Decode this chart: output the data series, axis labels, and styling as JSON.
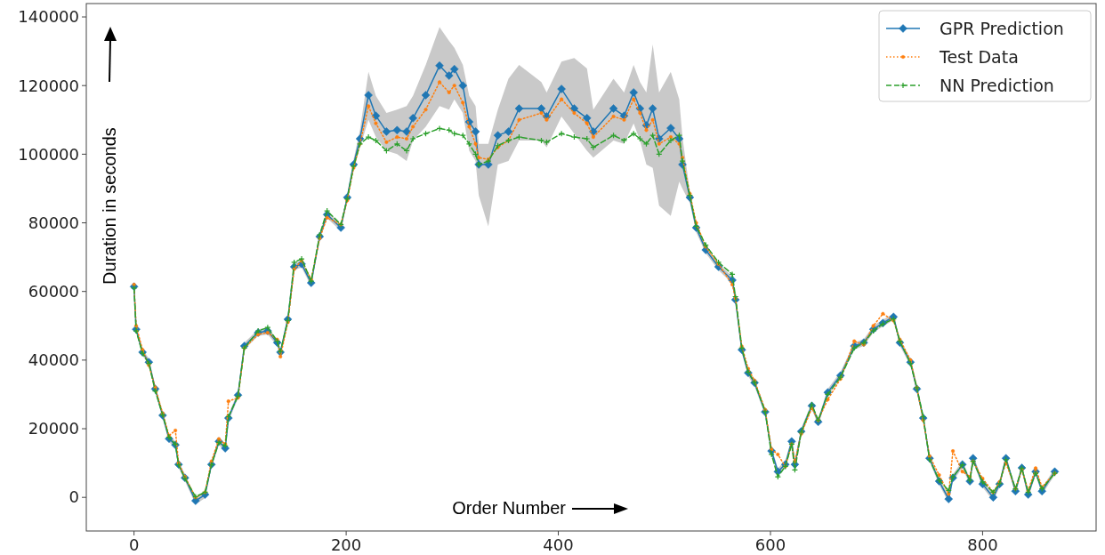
{
  "chart_data": {
    "type": "line",
    "xlabel": "Order Number",
    "ylabel": "Duration in seconds",
    "xlim": [
      -45,
      907
    ],
    "ylim": [
      -9800,
      143900
    ],
    "xticks": [
      0,
      200,
      400,
      600,
      800
    ],
    "yticks": [
      0,
      20000,
      40000,
      60000,
      80000,
      100000,
      120000,
      140000
    ],
    "grid": false,
    "legend": "top right",
    "x": [
      0,
      2,
      8,
      14,
      20,
      27,
      33,
      39,
      42,
      48,
      58,
      67,
      73,
      80,
      86,
      89,
      98,
      104,
      117,
      126,
      135,
      138,
      145,
      151,
      158,
      167,
      175,
      182,
      195,
      201,
      207,
      213,
      221,
      228,
      238,
      248,
      257,
      263,
      275,
      288,
      297,
      302,
      310,
      316,
      322,
      325,
      334,
      343,
      353,
      363,
      384,
      389,
      403,
      415,
      427,
      433,
      452,
      462,
      471,
      477,
      483,
      489,
      495,
      506,
      514,
      517,
      524,
      530,
      539,
      551,
      564,
      567,
      573,
      579,
      585,
      595,
      601,
      607,
      614,
      620,
      623,
      629,
      639,
      645,
      654,
      666,
      679,
      688,
      697,
      706,
      716,
      722,
      732,
      738,
      744,
      750,
      759,
      768,
      772,
      781,
      788,
      791,
      800,
      810,
      816,
      822,
      831,
      837,
      843,
      850,
      856,
      868
    ],
    "series": [
      {
        "name": "GPR Prediction",
        "color": "#1f77b4",
        "marker": "diamond",
        "line_style": "solid",
        "values": [
          61400,
          49000,
          42300,
          39400,
          31600,
          23900,
          17100,
          15300,
          9600,
          5700,
          -1000,
          800,
          9600,
          16300,
          14300,
          23100,
          29800,
          44100,
          48000,
          48500,
          45100,
          42300,
          51900,
          67200,
          68000,
          62500,
          76000,
          82400,
          78600,
          87400,
          97000,
          104500,
          117200,
          111200,
          106600,
          107000,
          106600,
          110500,
          117200,
          125800,
          122900,
          124800,
          120000,
          109400,
          106600,
          97000,
          97000,
          105500,
          106600,
          113300,
          113300,
          111000,
          119000,
          113300,
          110500,
          106600,
          113300,
          111200,
          118000,
          113300,
          108400,
          113300,
          104500,
          107600,
          104500,
          97000,
          87400,
          78600,
          72100,
          67200,
          63300,
          57600,
          43000,
          36300,
          33400,
          24900,
          13500,
          7500,
          9600,
          16300,
          9600,
          19200,
          26700,
          22000,
          30600,
          35500,
          44100,
          45100,
          49000,
          50800,
          52600,
          45100,
          39400,
          31600,
          23100,
          11400,
          4700,
          -500,
          5700,
          9600,
          4700,
          11400,
          3900,
          0,
          3900,
          11400,
          1800,
          8600,
          800,
          7500,
          1800,
          7500
        ],
        "upper": [
          62500,
          50000,
          43300,
          40400,
          32600,
          24900,
          18100,
          16300,
          10600,
          6700,
          0,
          1800,
          10600,
          17300,
          15300,
          24100,
          30800,
          45100,
          49000,
          49500,
          46100,
          43300,
          52900,
          68200,
          69000,
          63500,
          77000,
          83400,
          79600,
          88400,
          98500,
          107000,
          124000,
          117000,
          112000,
          113000,
          114000,
          117000,
          126000,
          137000,
          133000,
          131000,
          126000,
          117000,
          114000,
          103000,
          103000,
          113000,
          122000,
          126000,
          121000,
          118000,
          127000,
          128000,
          125000,
          113000,
          122000,
          118000,
          126000,
          121000,
          118000,
          132000,
          118000,
          124000,
          116000,
          105000,
          89000,
          80000,
          73100,
          68200,
          64300,
          58600,
          44000,
          37300,
          34400,
          25900,
          14500,
          8500,
          10600,
          17300,
          10600,
          20200,
          27700,
          23000,
          31600,
          36500,
          45100,
          46100,
          50000,
          51800,
          53600,
          46100,
          40400,
          32600,
          24100,
          12400,
          5700,
          500,
          6700,
          10600,
          5700,
          12400,
          4900,
          1000,
          4900,
          12400,
          2800,
          9600,
          1800,
          8500,
          2800,
          8500
        ],
        "lower": [
          60400,
          48000,
          41300,
          38400,
          30600,
          22900,
          16100,
          14300,
          8600,
          4700,
          -2000,
          -200,
          8600,
          15300,
          13300,
          22100,
          28800,
          43100,
          47000,
          47500,
          44100,
          41300,
          50900,
          66200,
          67000,
          61500,
          75000,
          81400,
          77600,
          86400,
          95500,
          102000,
          110000,
          105000,
          101000,
          100000,
          98000,
          104000,
          108000,
          114000,
          113000,
          116000,
          112000,
          101000,
          98000,
          88000,
          79000,
          97000,
          98000,
          104000,
          104000,
          102000,
          111000,
          106000,
          101000,
          99000,
          104000,
          103000,
          109000,
          104000,
          97000,
          96000,
          85000,
          82000,
          92000,
          90000,
          85800,
          77200,
          71100,
          66200,
          62300,
          56600,
          42000,
          35300,
          32400,
          23900,
          12500,
          6500,
          8600,
          15300,
          8600,
          18200,
          25700,
          21000,
          29600,
          34500,
          43100,
          44100,
          48000,
          49800,
          51600,
          44100,
          38400,
          30600,
          22100,
          10400,
          3700,
          -1500,
          4700,
          8600,
          3700,
          10400,
          2900,
          -1000,
          2900,
          10400,
          800,
          7600,
          -200,
          6500,
          800,
          6500
        ]
      },
      {
        "name": "Test Data",
        "color": "#ff7f0e",
        "marker": "circle",
        "line_style": "dotted",
        "values": [
          62000,
          50000,
          43000,
          38500,
          32000,
          24500,
          18000,
          19500,
          10000,
          6000,
          0,
          1500,
          10500,
          17000,
          15500,
          28000,
          29000,
          43500,
          47500,
          48000,
          46000,
          41000,
          51000,
          66500,
          69000,
          63500,
          75500,
          81500,
          79500,
          86500,
          96000,
          103000,
          114000,
          109000,
          103500,
          105000,
          104500,
          108000,
          113000,
          121000,
          118000,
          120000,
          115000,
          108000,
          103000,
          99000,
          98500,
          102000,
          104000,
          110000,
          112000,
          110000,
          116000,
          112000,
          109000,
          105000,
          111000,
          110000,
          116000,
          112000,
          107000,
          110000,
          103000,
          105000,
          103000,
          99000,
          88500,
          80000,
          73000,
          68000,
          62000,
          58000,
          44000,
          37500,
          34000,
          25500,
          14000,
          12500,
          9000,
          15500,
          10500,
          18500,
          26000,
          22500,
          28500,
          34500,
          45500,
          44500,
          50000,
          53500,
          51500,
          46000,
          40000,
          32000,
          22500,
          12000,
          6500,
          1000,
          13500,
          7500,
          6000,
          10500,
          5500,
          1500,
          4500,
          10000,
          2500,
          8000,
          2000,
          8500,
          3000,
          7000
        ]
      },
      {
        "name": "NN Prediction",
        "color": "#2ca02c",
        "marker": "cross",
        "line_style": "dashed",
        "values": [
          61000,
          48500,
          42000,
          39000,
          31000,
          24000,
          17500,
          15500,
          9500,
          5500,
          200,
          1500,
          9500,
          16000,
          15000,
          23500,
          29500,
          43500,
          48500,
          49500,
          45500,
          42500,
          51500,
          68500,
          69500,
          63000,
          76500,
          83500,
          79500,
          87000,
          96500,
          103000,
          105000,
          104000,
          101000,
          103000,
          101000,
          104500,
          106000,
          107500,
          107000,
          106000,
          105500,
          103000,
          100000,
          97000,
          98000,
          102500,
          104000,
          105000,
          104000,
          103500,
          106000,
          105000,
          104500,
          102000,
          105500,
          104000,
          106000,
          104500,
          103000,
          105500,
          100000,
          104000,
          105500,
          98000,
          88000,
          79000,
          73500,
          68500,
          65000,
          58500,
          43500,
          36500,
          33500,
          25000,
          12500,
          6000,
          9000,
          15500,
          8000,
          19000,
          27000,
          22500,
          30000,
          35000,
          43500,
          45000,
          48500,
          50500,
          52000,
          45500,
          39000,
          32000,
          23500,
          11000,
          5000,
          2000,
          6000,
          9500,
          5000,
          10500,
          4500,
          1500,
          4000,
          11000,
          2500,
          8500,
          1500,
          7000,
          2500,
          7000
        ]
      }
    ]
  }
}
